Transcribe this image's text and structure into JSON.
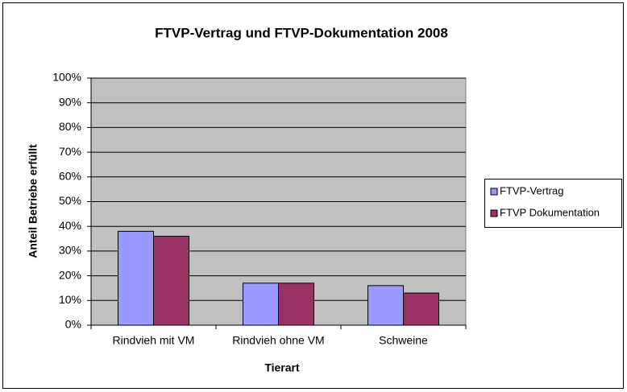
{
  "chart_data": {
    "type": "bar",
    "title": "FTVP-Vertrag und FTVP-Dokumentation  2008",
    "xlabel": "Tierart",
    "ylabel": "Anteil Betriebe erfüllt",
    "categories": [
      "Rindvieh mit VM",
      "Rindvieh ohne VM",
      "Schweine"
    ],
    "series": [
      {
        "name": "FTVP-Vertrag",
        "color": "#9999ff",
        "values": [
          38,
          17,
          16
        ]
      },
      {
        "name": "FTVP Dokumentation",
        "color": "#993366",
        "values": [
          36,
          17,
          13
        ]
      }
    ],
    "ylim": [
      0,
      100
    ],
    "yticks": [
      {
        "value": 0,
        "label": "0%"
      },
      {
        "value": 10,
        "label": "10%"
      },
      {
        "value": 20,
        "label": "20%"
      },
      {
        "value": 30,
        "label": "30%"
      },
      {
        "value": 40,
        "label": "40%"
      },
      {
        "value": 50,
        "label": "50%"
      },
      {
        "value": 60,
        "label": "60%"
      },
      {
        "value": 70,
        "label": "70%"
      },
      {
        "value": 80,
        "label": "80%"
      },
      {
        "value": 90,
        "label": "90%"
      },
      {
        "value": 100,
        "label": "100%"
      }
    ],
    "grid": true,
    "legend": "right"
  }
}
